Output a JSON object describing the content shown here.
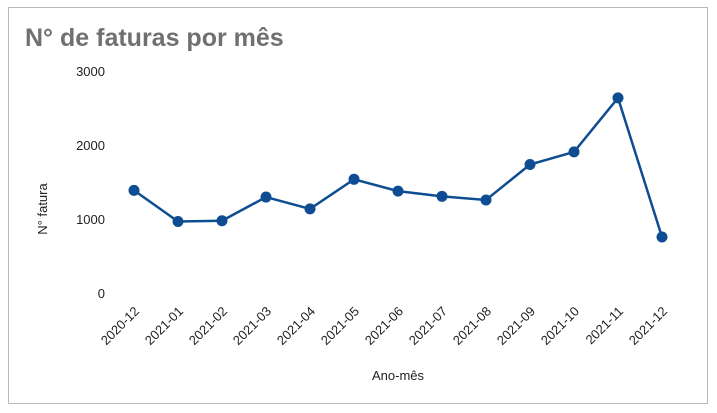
{
  "chart_data": {
    "type": "line",
    "title": "N° de faturas por mês",
    "xlabel": "Ano-mês",
    "ylabel": "N° fatura",
    "categories": [
      "2020-12",
      "2021-01",
      "2021-02",
      "2021-03",
      "2021-04",
      "2021-05",
      "2021-06",
      "2021-07",
      "2021-08",
      "2021-09",
      "2021-10",
      "2021-11",
      "2021-12"
    ],
    "values": [
      1400,
      980,
      990,
      1310,
      1150,
      1550,
      1390,
      1320,
      1270,
      1750,
      1920,
      2650,
      770
    ],
    "ylim": [
      0,
      3000
    ],
    "yticks": [
      "0",
      "1000",
      "2000",
      "3000"
    ],
    "grid": false,
    "color": "#0f4d92"
  }
}
